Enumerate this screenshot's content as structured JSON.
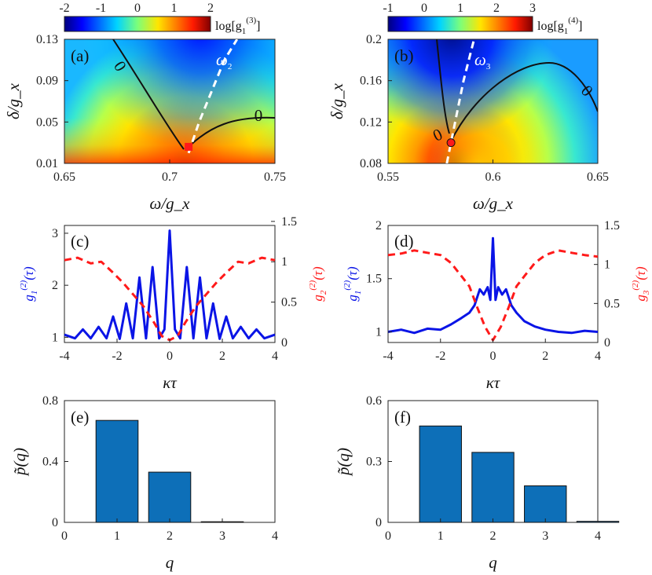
{
  "chart_data": [
    {
      "id": "a",
      "type": "heatmap",
      "panel_label": "(a)",
      "xlabel": "ω/g_x",
      "ylabel": "δ/g_x",
      "xlim": [
        0.65,
        0.75
      ],
      "ylim": [
        0.01,
        0.13
      ],
      "xticks": [
        "0.65",
        "0.7",
        "0.75"
      ],
      "xtick_values": [
        0.65,
        0.7,
        0.75
      ],
      "yticks": [
        "0.01",
        "0.05",
        "0.09",
        "0.13"
      ],
      "ytick_values": [
        0.01,
        0.05,
        0.09,
        0.13
      ],
      "colorbar": {
        "label": "log[g1(3)]",
        "label_main": "log[g",
        "label_sub": "1",
        "label_sup": "(3)",
        "label_end": "]",
        "ticks": [
          "-2",
          "-1",
          "0",
          "1",
          "2"
        ],
        "tick_values": [
          -2,
          -1,
          0,
          1,
          2
        ],
        "range": [
          -2,
          2
        ]
      },
      "contour_label": "0",
      "contour_label_2": "0",
      "curve_label": "ω2",
      "curve_label_main": "ω",
      "curve_label_sub": "2",
      "marker": {
        "x": 0.709,
        "y": 0.026,
        "color": "#ff1a1a"
      },
      "dashed_curve": {
        "x": [
          0.709,
          0.714,
          0.72,
          0.726,
          0.732
        ],
        "y": [
          0.02,
          0.05,
          0.08,
          0.11,
          0.13
        ]
      }
    },
    {
      "id": "b",
      "type": "heatmap",
      "panel_label": "(b)",
      "xlabel": "ω/g_x",
      "ylabel": "δ/g_x",
      "xlim": [
        0.55,
        0.65
      ],
      "ylim": [
        0.08,
        0.2
      ],
      "xticks": [
        "0.55",
        "0.6",
        "0.65"
      ],
      "xtick_values": [
        0.55,
        0.6,
        0.65
      ],
      "yticks": [
        "0.08",
        "0.12",
        "0.16",
        "0.2"
      ],
      "ytick_values": [
        0.08,
        0.12,
        0.16,
        0.2
      ],
      "colorbar": {
        "label": "log[g1(4)]",
        "label_main": "log[g",
        "label_sub": "1",
        "label_sup": "(4)",
        "label_end": "]",
        "ticks": [
          "-1",
          "0",
          "1",
          "2",
          "3"
        ],
        "tick_values": [
          -1,
          0,
          1,
          2,
          3
        ],
        "range": [
          -1,
          3
        ]
      },
      "contour_label": "0",
      "contour_label_2": "0",
      "curve_label": "ω3",
      "curve_label_main": "ω",
      "curve_label_sub": "3",
      "marker": {
        "x": 0.58,
        "y": 0.1,
        "color": "#ff1a1a"
      },
      "dashed_curve": {
        "x": [
          0.578,
          0.582,
          0.586,
          0.591
        ],
        "y": [
          0.08,
          0.12,
          0.16,
          0.2
        ]
      }
    },
    {
      "id": "c",
      "type": "line",
      "panel_label": "(c)",
      "xlabel": "κτ",
      "xlim": [
        -4,
        4
      ],
      "xticks": [
        "-4",
        "-2",
        "0",
        "2",
        "4"
      ],
      "xtick_values": [
        -4,
        -2,
        0,
        2,
        4
      ],
      "ylabel_left": "g1(2)(τ)",
      "ylabel_left_main": "g",
      "ylabel_left_sub": "1",
      "ylabel_left_sup": "(2)",
      "ylabel_left_arg": "(τ)",
      "ylabel_right": "g2(2)(τ)",
      "ylabel_right_main": "g",
      "ylabel_right_sub": "2",
      "ylabel_right_sup": "(2)",
      "ylabel_right_arg": "(τ)",
      "ylim_left": [
        0.9,
        3.15
      ],
      "yticks_left": [
        "1",
        "2",
        "3"
      ],
      "ytick_values_left": [
        1,
        2,
        3
      ],
      "ylim_right": [
        0,
        1.45
      ],
      "yticks_right": [
        "0",
        "0.5",
        "1",
        "1.5"
      ],
      "ytick_values_right": [
        0,
        0.5,
        1,
        1.5
      ],
      "series": [
        {
          "name": "g1(2)(τ)",
          "axis": "left",
          "color": "#0a14e6",
          "style": "solid",
          "x": [
            -4,
            -3.6,
            -3.3,
            -3.0,
            -2.7,
            -2.4,
            -2.15,
            -1.9,
            -1.65,
            -1.4,
            -1.15,
            -0.9,
            -0.65,
            -0.4,
            -0.2,
            0,
            0.2,
            0.4,
            0.65,
            0.9,
            1.15,
            1.4,
            1.65,
            1.9,
            2.15,
            2.4,
            2.7,
            3.0,
            3.3,
            3.6,
            4
          ],
          "y": [
            1.05,
            0.98,
            1.15,
            0.98,
            1.2,
            0.98,
            1.4,
            0.97,
            1.65,
            0.98,
            2.15,
            0.98,
            2.35,
            0.98,
            1.15,
            3.05,
            1.15,
            0.98,
            2.35,
            0.98,
            2.15,
            0.98,
            1.65,
            0.97,
            1.4,
            0.98,
            1.2,
            0.98,
            1.15,
            0.98,
            1.05
          ]
        },
        {
          "name": "g2(2)(τ)",
          "axis": "right",
          "color": "#ff1a1a",
          "style": "dashed",
          "x": [
            -4,
            -3.5,
            -3.0,
            -2.6,
            -2.2,
            -1.8,
            -1.4,
            -1.0,
            -0.6,
            -0.3,
            0,
            0.3,
            0.6,
            1.0,
            1.4,
            1.8,
            2.2,
            2.6,
            3.0,
            3.5,
            4
          ],
          "y": [
            1.02,
            1.05,
            0.98,
            1.0,
            0.88,
            0.75,
            0.6,
            0.45,
            0.25,
            0.08,
            0.03,
            0.08,
            0.25,
            0.45,
            0.6,
            0.75,
            0.88,
            1.0,
            0.98,
            1.05,
            1.02
          ]
        }
      ]
    },
    {
      "id": "d",
      "type": "line",
      "panel_label": "(d)",
      "xlabel": "κτ",
      "xlim": [
        -4,
        4
      ],
      "xticks": [
        "-4",
        "-2",
        "0",
        "2",
        "4"
      ],
      "xtick_values": [
        -4,
        -2,
        0,
        2,
        4
      ],
      "ylabel_left": "g1(2)(τ)",
      "ylabel_left_main": "g",
      "ylabel_left_sub": "1",
      "ylabel_left_sup": "(2)",
      "ylabel_left_arg": "(τ)",
      "ylabel_right": "g3(2)(τ)",
      "ylabel_right_main": "g",
      "ylabel_right_sub": "3",
      "ylabel_right_sup": "(2)",
      "ylabel_right_arg": "(τ)",
      "ylim_left": [
        0.9,
        2.0
      ],
      "yticks_left": [
        "1",
        "1.5",
        "2"
      ],
      "ytick_values_left": [
        1,
        1.5,
        2
      ],
      "ylim_right": [
        0,
        1.5
      ],
      "yticks_right": [
        "0",
        "0.5",
        "1",
        "1.5"
      ],
      "ytick_values_right": [
        0,
        0.5,
        1,
        1.5
      ],
      "series": [
        {
          "name": "g1(2)(τ)",
          "axis": "left",
          "color": "#0a14e6",
          "style": "solid",
          "x": [
            -4,
            -3.5,
            -3.0,
            -2.5,
            -2.0,
            -1.6,
            -1.2,
            -0.9,
            -0.7,
            -0.5,
            -0.35,
            -0.2,
            -0.1,
            0,
            0.1,
            0.2,
            0.35,
            0.5,
            0.7,
            0.9,
            1.2,
            1.6,
            2.0,
            2.5,
            3.0,
            3.5,
            4
          ],
          "y": [
            1.0,
            1.02,
            0.99,
            1.03,
            1.02,
            1.07,
            1.13,
            1.18,
            1.25,
            1.4,
            1.35,
            1.42,
            1.3,
            1.88,
            1.3,
            1.42,
            1.35,
            1.4,
            1.25,
            1.18,
            1.1,
            1.05,
            1.02,
            1.0,
            0.99,
            1.01,
            1.0
          ]
        },
        {
          "name": "g3(2)(τ)",
          "axis": "right",
          "color": "#ff1a1a",
          "style": "dashed",
          "x": [
            -4,
            -3.5,
            -3.0,
            -2.5,
            -2.0,
            -1.6,
            -1.2,
            -0.9,
            -0.6,
            -0.3,
            0,
            0.3,
            0.6,
            0.9,
            1.2,
            1.6,
            2.0,
            2.5,
            3.0,
            3.5,
            4
          ],
          "y": [
            1.12,
            1.14,
            1.18,
            1.15,
            1.12,
            1.02,
            0.85,
            0.72,
            0.45,
            0.2,
            0.03,
            0.2,
            0.45,
            0.72,
            0.85,
            1.02,
            1.12,
            1.18,
            1.15,
            1.12,
            1.1
          ]
        }
      ]
    },
    {
      "id": "e",
      "type": "bar",
      "panel_label": "(e)",
      "xlabel": "q",
      "ylabel": "p̃(q)",
      "xlim": [
        0,
        4
      ],
      "ylim": [
        0,
        0.8
      ],
      "xticks": [
        "0",
        "1",
        "2",
        "3",
        "4"
      ],
      "xtick_values": [
        0,
        1,
        2,
        3,
        4
      ],
      "yticks": [
        "0",
        "0.4",
        "0.8"
      ],
      "ytick_values": [
        0,
        0.4,
        0.8
      ],
      "categories": [
        1,
        2,
        3
      ],
      "values": [
        0.67,
        0.33,
        0.0
      ],
      "color": "#0d6fb8"
    },
    {
      "id": "f",
      "type": "bar",
      "panel_label": "(f)",
      "xlabel": "q",
      "ylabel": "p̃(q)",
      "xlim": [
        0,
        4
      ],
      "ylim": [
        0,
        0.6
      ],
      "xticks": [
        "0",
        "1",
        "2",
        "3",
        "4"
      ],
      "xtick_values": [
        0,
        1,
        2,
        3,
        4
      ],
      "yticks": [
        "0",
        "0.3",
        "0.6"
      ],
      "ytick_values": [
        0,
        0.3,
        0.6
      ],
      "categories": [
        1,
        2,
        3,
        4
      ],
      "values": [
        0.475,
        0.345,
        0.18,
        0.005
      ],
      "color": "#0d6fb8"
    }
  ]
}
